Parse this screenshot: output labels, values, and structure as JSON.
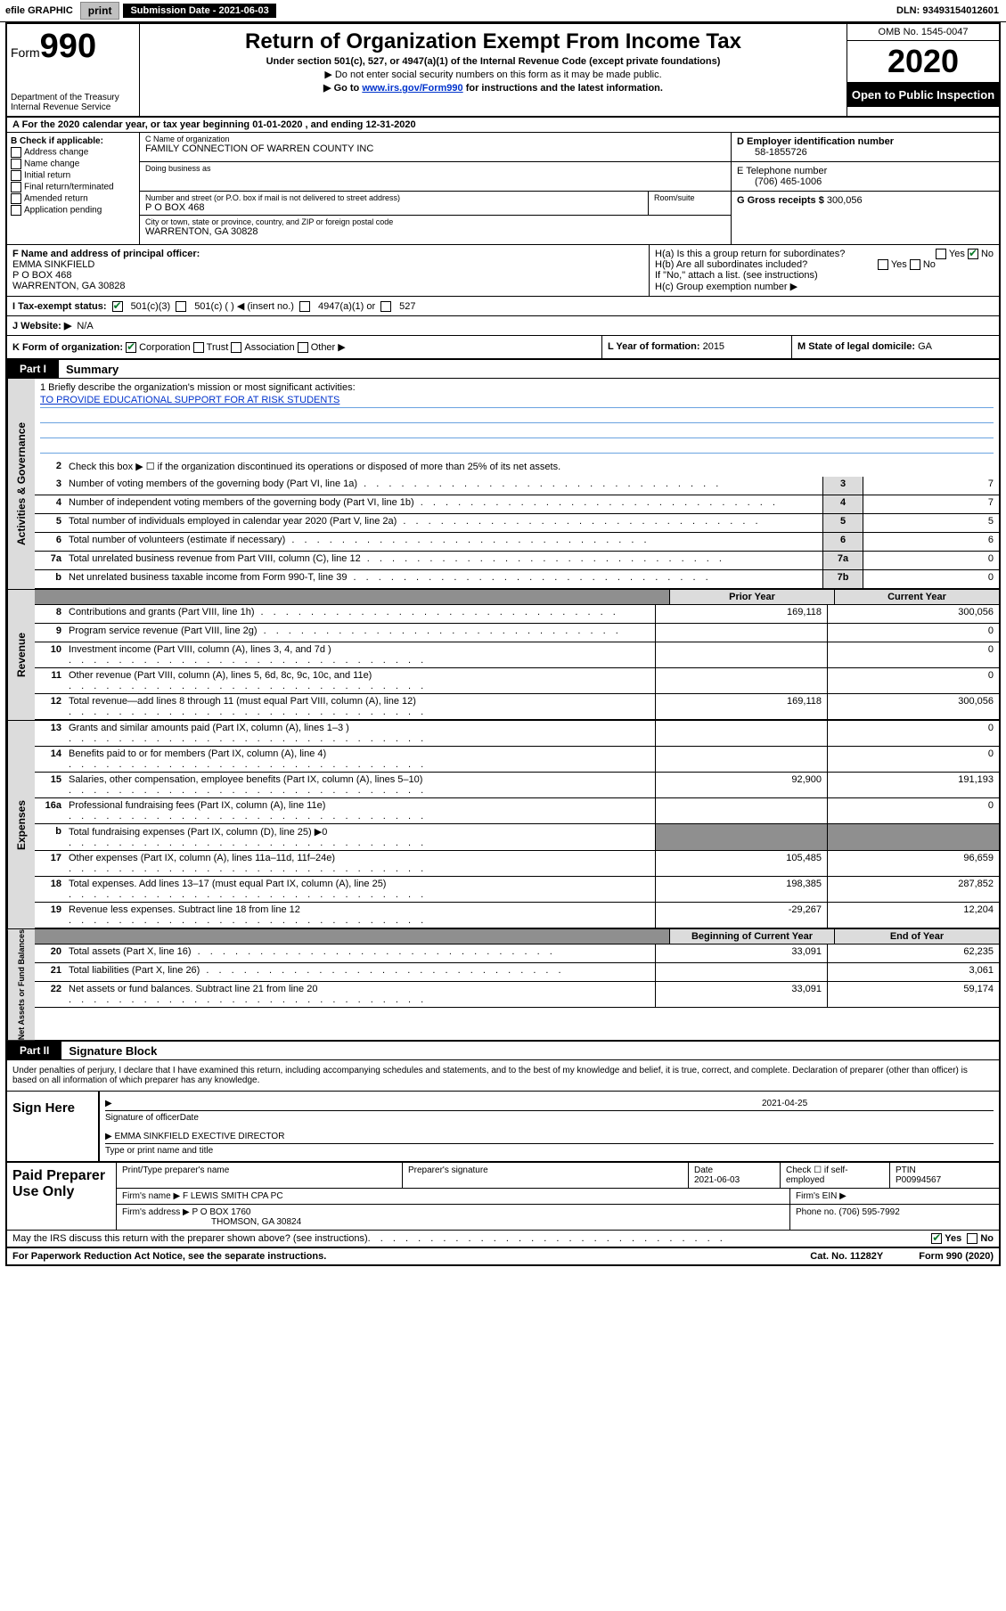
{
  "topbar": {
    "efile_label": "efile GRAPHIC",
    "print_btn": "print",
    "sub_date_label": "Submission Date - 2021-06-03",
    "dln": "DLN: 93493154012601"
  },
  "header": {
    "form_word": "Form",
    "form_number": "990",
    "dept": "Department of the Treasury",
    "irs": "Internal Revenue Service",
    "title": "Return of Organization Exempt From Income Tax",
    "subtitle": "Under section 501(c), 527, or 4947(a)(1) of the Internal Revenue Code (except private foundations)",
    "note1": "▶ Do not enter social security numbers on this form as it may be made public.",
    "note2_pre": "▶ Go to ",
    "note2_link": "www.irs.gov/Form990",
    "note2_post": " for instructions and the latest information.",
    "omb": "OMB No. 1545-0047",
    "year": "2020",
    "open_public": "Open to Public Inspection"
  },
  "rowA": "A For the 2020 calendar year, or tax year beginning 01-01-2020    , and ending 12-31-2020",
  "colB": {
    "header": "B Check if applicable:",
    "opts": [
      "Address change",
      "Name change",
      "Initial return",
      "Final return/terminated",
      "Amended return",
      "Application pending"
    ]
  },
  "colC": {
    "name_label": "C Name of organization",
    "name": "FAMILY CONNECTION OF WARREN COUNTY INC",
    "dba_label": "Doing business as",
    "dba": "",
    "addr_label": "Number and street (or P.O. box if mail is not delivered to street address)",
    "addr": "P O BOX 468",
    "room_label": "Room/suite",
    "city_label": "City or town, state or province, country, and ZIP or foreign postal code",
    "city": "WARRENTON, GA  30828"
  },
  "colD": {
    "ein_label": "D Employer identification number",
    "ein": "58-1855726",
    "tel_label": "E Telephone number",
    "tel": "(706) 465-1006",
    "gross_label": "G Gross receipts $",
    "gross": "300,056"
  },
  "rowF": {
    "label": "F  Name and address of principal officer:",
    "name": "EMMA SINKFIELD",
    "addr1": "P O BOX 468",
    "addr2": "WARRENTON, GA  30828"
  },
  "rowH": {
    "ha": "H(a)  Is this a group return for subordinates?",
    "hb": "H(b)  Are all subordinates included?",
    "hb_note": "If \"No,\" attach a list. (see instructions)",
    "hc": "H(c)  Group exemption number ▶",
    "yes": "Yes",
    "no": "No"
  },
  "rowI": {
    "label": "I   Tax-exempt status:",
    "o1": "501(c)(3)",
    "o2": "501(c) (  ) ◀ (insert no.)",
    "o3": "4947(a)(1) or",
    "o4": "527"
  },
  "rowJ": {
    "label": "J   Website: ▶",
    "val": "N/A"
  },
  "rowK": {
    "label": "K Form of organization:",
    "o1": "Corporation",
    "o2": "Trust",
    "o3": "Association",
    "o4": "Other ▶"
  },
  "rowL": {
    "label": "L Year of formation:",
    "val": "2015"
  },
  "rowM": {
    "label": "M State of legal domicile:",
    "val": "GA"
  },
  "partI": {
    "tab": "Part I",
    "title": "Summary"
  },
  "mission": {
    "q": "1   Briefly describe the organization's mission or most significant activities:",
    "text": "TO PROVIDE EDUCATIONAL SUPPORT FOR AT RISK STUDENTS"
  },
  "line2": "Check this box ▶ ☐  if the organization discontinued its operations or disposed of more than 25% of its net assets.",
  "lines_gov": [
    {
      "n": "3",
      "d": "Number of voting members of the governing body (Part VI, line 1a)",
      "box": "3",
      "v": "7"
    },
    {
      "n": "4",
      "d": "Number of independent voting members of the governing body (Part VI, line 1b)",
      "box": "4",
      "v": "7"
    },
    {
      "n": "5",
      "d": "Total number of individuals employed in calendar year 2020 (Part V, line 2a)",
      "box": "5",
      "v": "5"
    },
    {
      "n": "6",
      "d": "Total number of volunteers (estimate if necessary)",
      "box": "6",
      "v": "6"
    },
    {
      "n": "7a",
      "d": "Total unrelated business revenue from Part VIII, column (C), line 12",
      "box": "7a",
      "v": "0"
    },
    {
      "n": "b",
      "d": "Net unrelated business taxable income from Form 990-T, line 39",
      "box": "7b",
      "v": "0"
    }
  ],
  "col_headers": {
    "prior": "Prior Year",
    "current": "Current Year",
    "begin": "Beginning of Current Year",
    "end": "End of Year"
  },
  "revenue": [
    {
      "n": "8",
      "d": "Contributions and grants (Part VIII, line 1h)",
      "p": "169,118",
      "c": "300,056"
    },
    {
      "n": "9",
      "d": "Program service revenue (Part VIII, line 2g)",
      "p": "",
      "c": "0"
    },
    {
      "n": "10",
      "d": "Investment income (Part VIII, column (A), lines 3, 4, and 7d )",
      "p": "",
      "c": "0"
    },
    {
      "n": "11",
      "d": "Other revenue (Part VIII, column (A), lines 5, 6d, 8c, 9c, 10c, and 11e)",
      "p": "",
      "c": "0"
    },
    {
      "n": "12",
      "d": "Total revenue—add lines 8 through 11 (must equal Part VIII, column (A), line 12)",
      "p": "169,118",
      "c": "300,056"
    }
  ],
  "expenses": [
    {
      "n": "13",
      "d": "Grants and similar amounts paid (Part IX, column (A), lines 1–3 )",
      "p": "",
      "c": "0"
    },
    {
      "n": "14",
      "d": "Benefits paid to or for members (Part IX, column (A), line 4)",
      "p": "",
      "c": "0"
    },
    {
      "n": "15",
      "d": "Salaries, other compensation, employee benefits (Part IX, column (A), lines 5–10)",
      "p": "92,900",
      "c": "191,193"
    },
    {
      "n": "16a",
      "d": "Professional fundraising fees (Part IX, column (A), line 11e)",
      "p": "",
      "c": "0"
    },
    {
      "n": "b",
      "d": "Total fundraising expenses (Part IX, column (D), line 25) ▶0",
      "p": "shaded",
      "c": "shaded"
    },
    {
      "n": "17",
      "d": "Other expenses (Part IX, column (A), lines 11a–11d, 11f–24e)",
      "p": "105,485",
      "c": "96,659"
    },
    {
      "n": "18",
      "d": "Total expenses. Add lines 13–17 (must equal Part IX, column (A), line 25)",
      "p": "198,385",
      "c": "287,852"
    },
    {
      "n": "19",
      "d": "Revenue less expenses. Subtract line 18 from line 12",
      "p": "-29,267",
      "c": "12,204"
    }
  ],
  "netassets": [
    {
      "n": "20",
      "d": "Total assets (Part X, line 16)",
      "p": "33,091",
      "c": "62,235"
    },
    {
      "n": "21",
      "d": "Total liabilities (Part X, line 26)",
      "p": "",
      "c": "3,061"
    },
    {
      "n": "22",
      "d": "Net assets or fund balances. Subtract line 21 from line 20",
      "p": "33,091",
      "c": "59,174"
    }
  ],
  "side_labels": {
    "gov": "Activities & Governance",
    "rev": "Revenue",
    "exp": "Expenses",
    "net": "Net Assets or Fund Balances"
  },
  "partII": {
    "tab": "Part II",
    "title": "Signature Block"
  },
  "sig_text": "Under penalties of perjury, I declare that I have examined this return, including accompanying schedules and statements, and to the best of my knowledge and belief, it is true, correct, and complete. Declaration of preparer (other than officer) is based on all information of which preparer has any knowledge.",
  "sign": {
    "here": "Sign Here",
    "officer_label": "Signature of officer",
    "date_val": "2021-04-25",
    "date_label": "Date",
    "name": "EMMA SINKFIELD  EXECTIVE DIRECTOR",
    "name_label": "Type or print name and title"
  },
  "paid": {
    "title": "Paid Preparer Use Only",
    "h1": "Print/Type preparer's name",
    "h2": "Preparer's signature",
    "h3": "Date",
    "h3v": "2021-06-03",
    "h4": "Check ☐ if self-employed",
    "h5": "PTIN",
    "h5v": "P00994567",
    "firm_name_l": "Firm's name    ▶",
    "firm_name": "F LEWIS SMITH CPA PC",
    "firm_ein_l": "Firm's EIN ▶",
    "firm_addr_l": "Firm's address ▶",
    "firm_addr1": "P O BOX 1760",
    "firm_addr2": "THOMSON, GA  30824",
    "phone_l": "Phone no.",
    "phone": "(706) 595-7992"
  },
  "footer": {
    "discuss": "May the IRS discuss this return with the preparer shown above? (see instructions)",
    "yes": "Yes",
    "no": "No",
    "paperwork": "For Paperwork Reduction Act Notice, see the separate instructions.",
    "cat": "Cat. No. 11282Y",
    "form": "Form 990 (2020)"
  }
}
